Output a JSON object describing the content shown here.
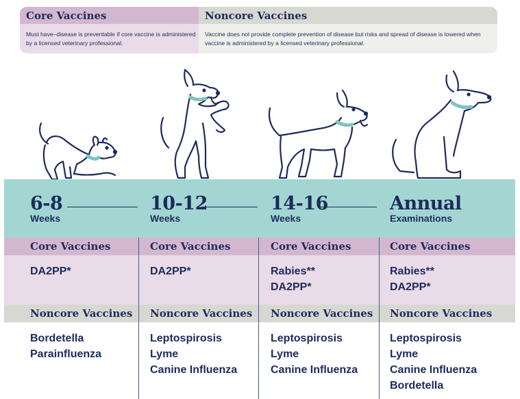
{
  "legend": {
    "core_title": "Core Vaccines",
    "core_desc": "Must have–disease is preventable if core vaccine is administered by a licensed veterinary professional.",
    "noncore_title": "Noncore Vaccines",
    "noncore_desc": "Vaccine does not provide complete prevention of disease but risks and spread of disease is lowered when vaccine is administered by a licensed veterinary professional."
  },
  "colors": {
    "navy": "#1d2a5b",
    "teal": "#a3d6d2",
    "core_header": "#d3b7cf",
    "core_body": "#eadbe8",
    "noncore_header": "#d8d8d3",
    "noncore_body": "#efefeb"
  },
  "columns": [
    {
      "age": "6-8",
      "unit": "Weeks",
      "core_label": "Core Vaccines",
      "core": [
        "DA2PP*"
      ],
      "noncore_label": "Noncore Vaccines",
      "noncore": [
        "Bordetella",
        "Parainfluenza"
      ]
    },
    {
      "age": "10-12",
      "unit": "Weeks",
      "core_label": "Core Vaccines",
      "core": [
        "DA2PP*"
      ],
      "noncore_label": "Noncore Vaccines",
      "noncore": [
        "Leptospirosis",
        "Lyme",
        "Canine Influenza"
      ]
    },
    {
      "age": "14-16",
      "unit": "Weeks",
      "core_label": "Core Vaccines",
      "core": [
        "Rabies**",
        "DA2PP*"
      ],
      "noncore_label": "Noncore Vaccines",
      "noncore": [
        "Leptospirosis",
        "Lyme",
        "Canine Influenza"
      ]
    },
    {
      "age": "Annual",
      "unit": "Examinations",
      "core_label": "Core Vaccines",
      "core": [
        "Rabies**",
        "DA2PP*"
      ],
      "noncore_label": "Noncore Vaccines",
      "noncore": [
        "Leptospirosis",
        "Lyme",
        "Canine Influenza",
        "Bordetella"
      ]
    }
  ]
}
